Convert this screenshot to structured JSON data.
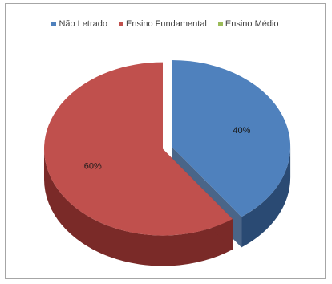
{
  "chart_data": {
    "type": "pie",
    "title": "",
    "categories": [
      "Não Letrado",
      "Ensino Fundamental",
      "Ensino Médio"
    ],
    "values": [
      40,
      60,
      0
    ],
    "labels": [
      "40%",
      "60%",
      ""
    ],
    "colors": [
      "#4f81bd",
      "#c0504d",
      "#9bbb59"
    ],
    "side_colors": [
      "#2a4a73",
      "#7a2a28",
      "#5e7a30"
    ],
    "legend_position": "top",
    "style": "3d-exploded"
  }
}
